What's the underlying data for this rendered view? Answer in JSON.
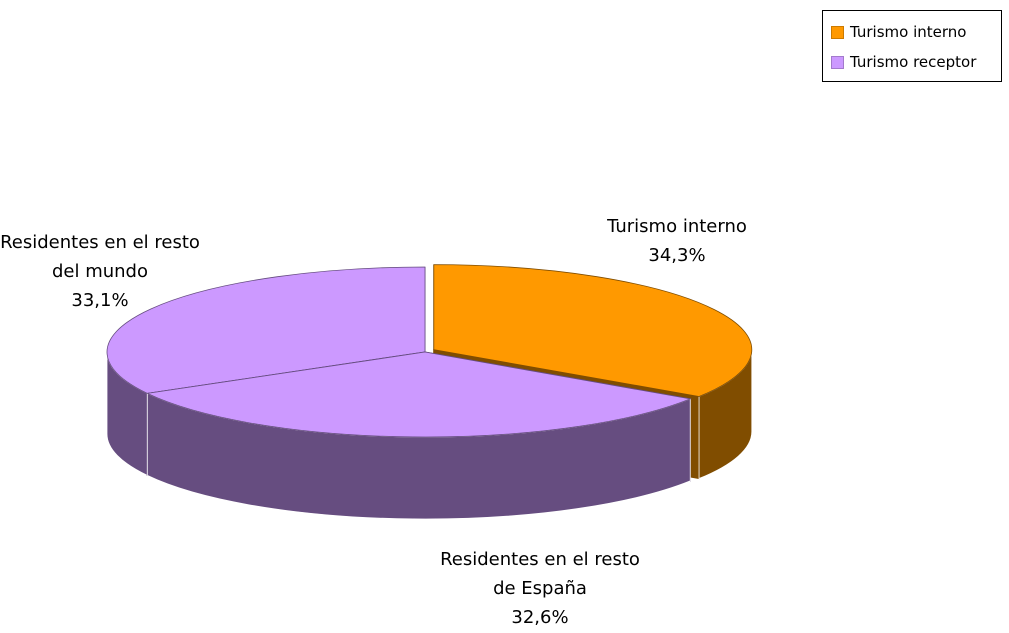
{
  "chart_data": {
    "type": "pie",
    "categories": [
      "Turismo interno",
      "Residentes en el resto de España",
      "Residentes en el resto del mundo"
    ],
    "values": [
      34.3,
      32.6,
      33.1
    ],
    "value_labels": [
      "34,3%",
      "32,6%",
      "33,1%"
    ],
    "colors": [
      "#ff9900",
      "#cc99ff",
      "#cc99ff"
    ],
    "legend": [
      {
        "name": "Turismo interno",
        "color": "#ff9900"
      },
      {
        "name": "Turismo receptor",
        "color": "#cc99ff"
      }
    ],
    "legend_position": "top-right"
  }
}
